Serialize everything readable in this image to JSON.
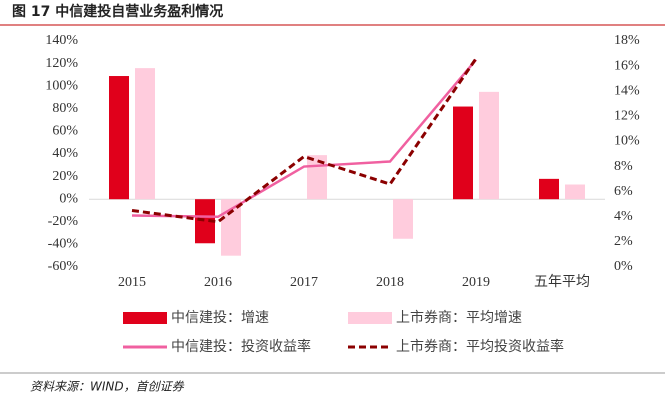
{
  "title": "图 17  中信建投自营业务盈利情况",
  "source": "资料来源：WIND，首创证券",
  "chart_data": {
    "type": "bar-line",
    "categories": [
      "2015",
      "2016",
      "2017",
      "2018",
      "2019",
      "五年平均"
    ],
    "series": [
      {
        "name": "中信建投：增速",
        "type": "bar",
        "color": "#e0001b",
        "values": [
          109,
          -39,
          null,
          null,
          82,
          18
        ]
      },
      {
        "name": "上市券商：平均增速",
        "type": "bar",
        "color": "#ffccdd",
        "values": [
          116,
          -50,
          39,
          -35,
          95,
          13
        ]
      },
      {
        "name": "中信建投：投资收益率",
        "type": "line",
        "axis": "y2",
        "color": "#f060a0",
        "values": [
          4.1,
          4.0,
          8.0,
          8.4,
          16.5,
          null
        ]
      },
      {
        "name": "上市券商：平均投资收益率",
        "type": "line",
        "axis": "y2",
        "dashed": true,
        "color": "#8b0000",
        "values": [
          4.5,
          3.6,
          8.8,
          6.6,
          16.6,
          null
        ]
      }
    ],
    "ylim": [
      -60,
      140
    ],
    "yticks": [
      {
        "value": -60,
        "label": "-60%"
      },
      {
        "value": -40,
        "label": "-40%"
      },
      {
        "value": -20,
        "label": "-20%"
      },
      {
        "value": 0,
        "label": "0%"
      },
      {
        "value": 20,
        "label": "20%"
      },
      {
        "value": 40,
        "label": "40%"
      },
      {
        "value": 60,
        "label": "60%"
      },
      {
        "value": 80,
        "label": "80%"
      },
      {
        "value": 100,
        "label": "100%"
      },
      {
        "value": 120,
        "label": "120%"
      },
      {
        "value": 140,
        "label": "140%"
      }
    ],
    "y2lim": [
      0,
      18
    ],
    "y2ticks": [
      {
        "value": 0,
        "label": "0%"
      },
      {
        "value": 2,
        "label": "2%"
      },
      {
        "value": 4,
        "label": "4%"
      },
      {
        "value": 6,
        "label": "6%"
      },
      {
        "value": 8,
        "label": "8%"
      },
      {
        "value": 10,
        "label": "10%"
      },
      {
        "value": 12,
        "label": "12%"
      },
      {
        "value": 14,
        "label": "14%"
      },
      {
        "value": 16,
        "label": "16%"
      },
      {
        "value": 18,
        "label": "18%"
      }
    ]
  }
}
